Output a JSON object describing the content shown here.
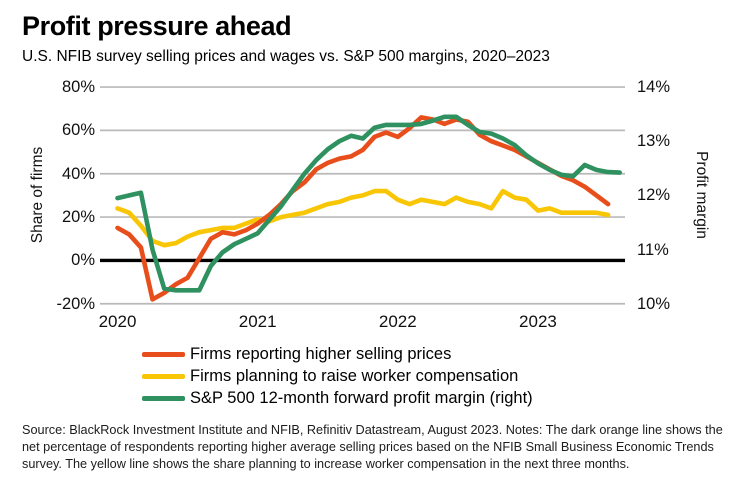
{
  "header": {
    "title": "Profit pressure ahead",
    "subtitle": "U.S. NFIB survey selling prices and wages vs. S&P 500 margins, 2020–2023"
  },
  "chart_data": {
    "type": "line",
    "title": "Profit pressure ahead",
    "grid_color": "#b9b9b9",
    "zero_line_color": "#000000",
    "left_axis": {
      "title": "Share of firms",
      "range": [
        -20,
        80
      ],
      "ticks": [
        {
          "label": "80%",
          "value": 80
        },
        {
          "label": "60%",
          "value": 60
        },
        {
          "label": "40%",
          "value": 40
        },
        {
          "label": "20%",
          "value": 20
        },
        {
          "label": "0%",
          "value": 0
        },
        {
          "label": "-20%",
          "value": -20
        }
      ]
    },
    "right_axis": {
      "title": "Profit margin",
      "range": [
        10,
        14
      ],
      "ticks": [
        {
          "label": "14%",
          "value": 14
        },
        {
          "label": "13%",
          "value": 13
        },
        {
          "label": "12%",
          "value": 12
        },
        {
          "label": "11%",
          "value": 11
        },
        {
          "label": "10%",
          "value": 10
        }
      ]
    },
    "x_axis": {
      "ticks": [
        {
          "label": "2020",
          "month_index": 0
        },
        {
          "label": "2021",
          "month_index": 12
        },
        {
          "label": "2022",
          "month_index": 24
        },
        {
          "label": "2023",
          "month_index": 36
        }
      ]
    },
    "months": [
      "2020-01",
      "2020-02",
      "2020-03",
      "2020-04",
      "2020-05",
      "2020-06",
      "2020-07",
      "2020-08",
      "2020-09",
      "2020-10",
      "2020-11",
      "2020-12",
      "2021-01",
      "2021-02",
      "2021-03",
      "2021-04",
      "2021-05",
      "2021-06",
      "2021-07",
      "2021-08",
      "2021-09",
      "2021-10",
      "2021-11",
      "2021-12",
      "2022-01",
      "2022-02",
      "2022-03",
      "2022-04",
      "2022-05",
      "2022-06",
      "2022-07",
      "2022-08",
      "2022-09",
      "2022-10",
      "2022-11",
      "2022-12",
      "2023-01",
      "2023-02",
      "2023-03",
      "2023-04",
      "2023-05",
      "2023-06",
      "2023-07",
      "2023-08"
    ],
    "series": [
      {
        "name": "Firms reporting higher selling prices",
        "axis": "left",
        "color": "#e84e1b",
        "values": [
          15,
          12,
          6,
          -18,
          -15,
          -11,
          -8,
          1,
          10,
          13,
          12,
          14,
          17,
          21,
          26,
          32,
          36,
          42,
          45,
          47,
          48,
          51,
          57,
          59,
          57,
          61,
          66,
          65,
          63,
          65,
          64,
          58,
          55,
          53,
          51,
          48,
          45,
          42,
          39,
          37,
          34,
          30,
          26
        ]
      },
      {
        "name": "Firms planning to raise worker compensation",
        "axis": "left",
        "color": "#f9c606",
        "values": [
          24,
          22,
          16,
          9,
          7,
          8,
          11,
          13,
          14,
          15,
          15,
          17,
          19,
          18,
          20,
          21,
          22,
          24,
          26,
          27,
          29,
          30,
          32,
          32,
          28,
          26,
          28,
          27,
          26,
          29,
          27,
          26,
          24,
          32,
          29,
          28,
          23,
          24,
          22,
          22,
          22,
          22,
          21
        ]
      },
      {
        "name": "S&P 500 12-month forward profit margin (right)",
        "axis": "right",
        "color": "#2f9160",
        "values": [
          11.95,
          12.0,
          12.05,
          11.0,
          10.28,
          10.25,
          10.25,
          10.25,
          10.7,
          10.95,
          11.1,
          11.2,
          11.3,
          11.55,
          11.8,
          12.1,
          12.4,
          12.65,
          12.85,
          13.0,
          13.1,
          13.05,
          13.25,
          13.3,
          13.3,
          13.3,
          13.32,
          13.38,
          13.45,
          13.45,
          13.3,
          13.17,
          13.14,
          13.05,
          12.93,
          12.74,
          12.59,
          12.47,
          12.38,
          12.35,
          12.56,
          12.47,
          12.43,
          12.42
        ]
      }
    ]
  },
  "footer": {
    "source": "Source: BlackRock Investment Institute and NFIB, Refinitiv Datastream,  August 2023. Notes: The dark orange line shows the net percentage of respondents reporting higher average selling prices based on the NFIB Small Business Economic Trends survey. The yellow line shows the share planning to increase worker compensation in the next three months."
  }
}
